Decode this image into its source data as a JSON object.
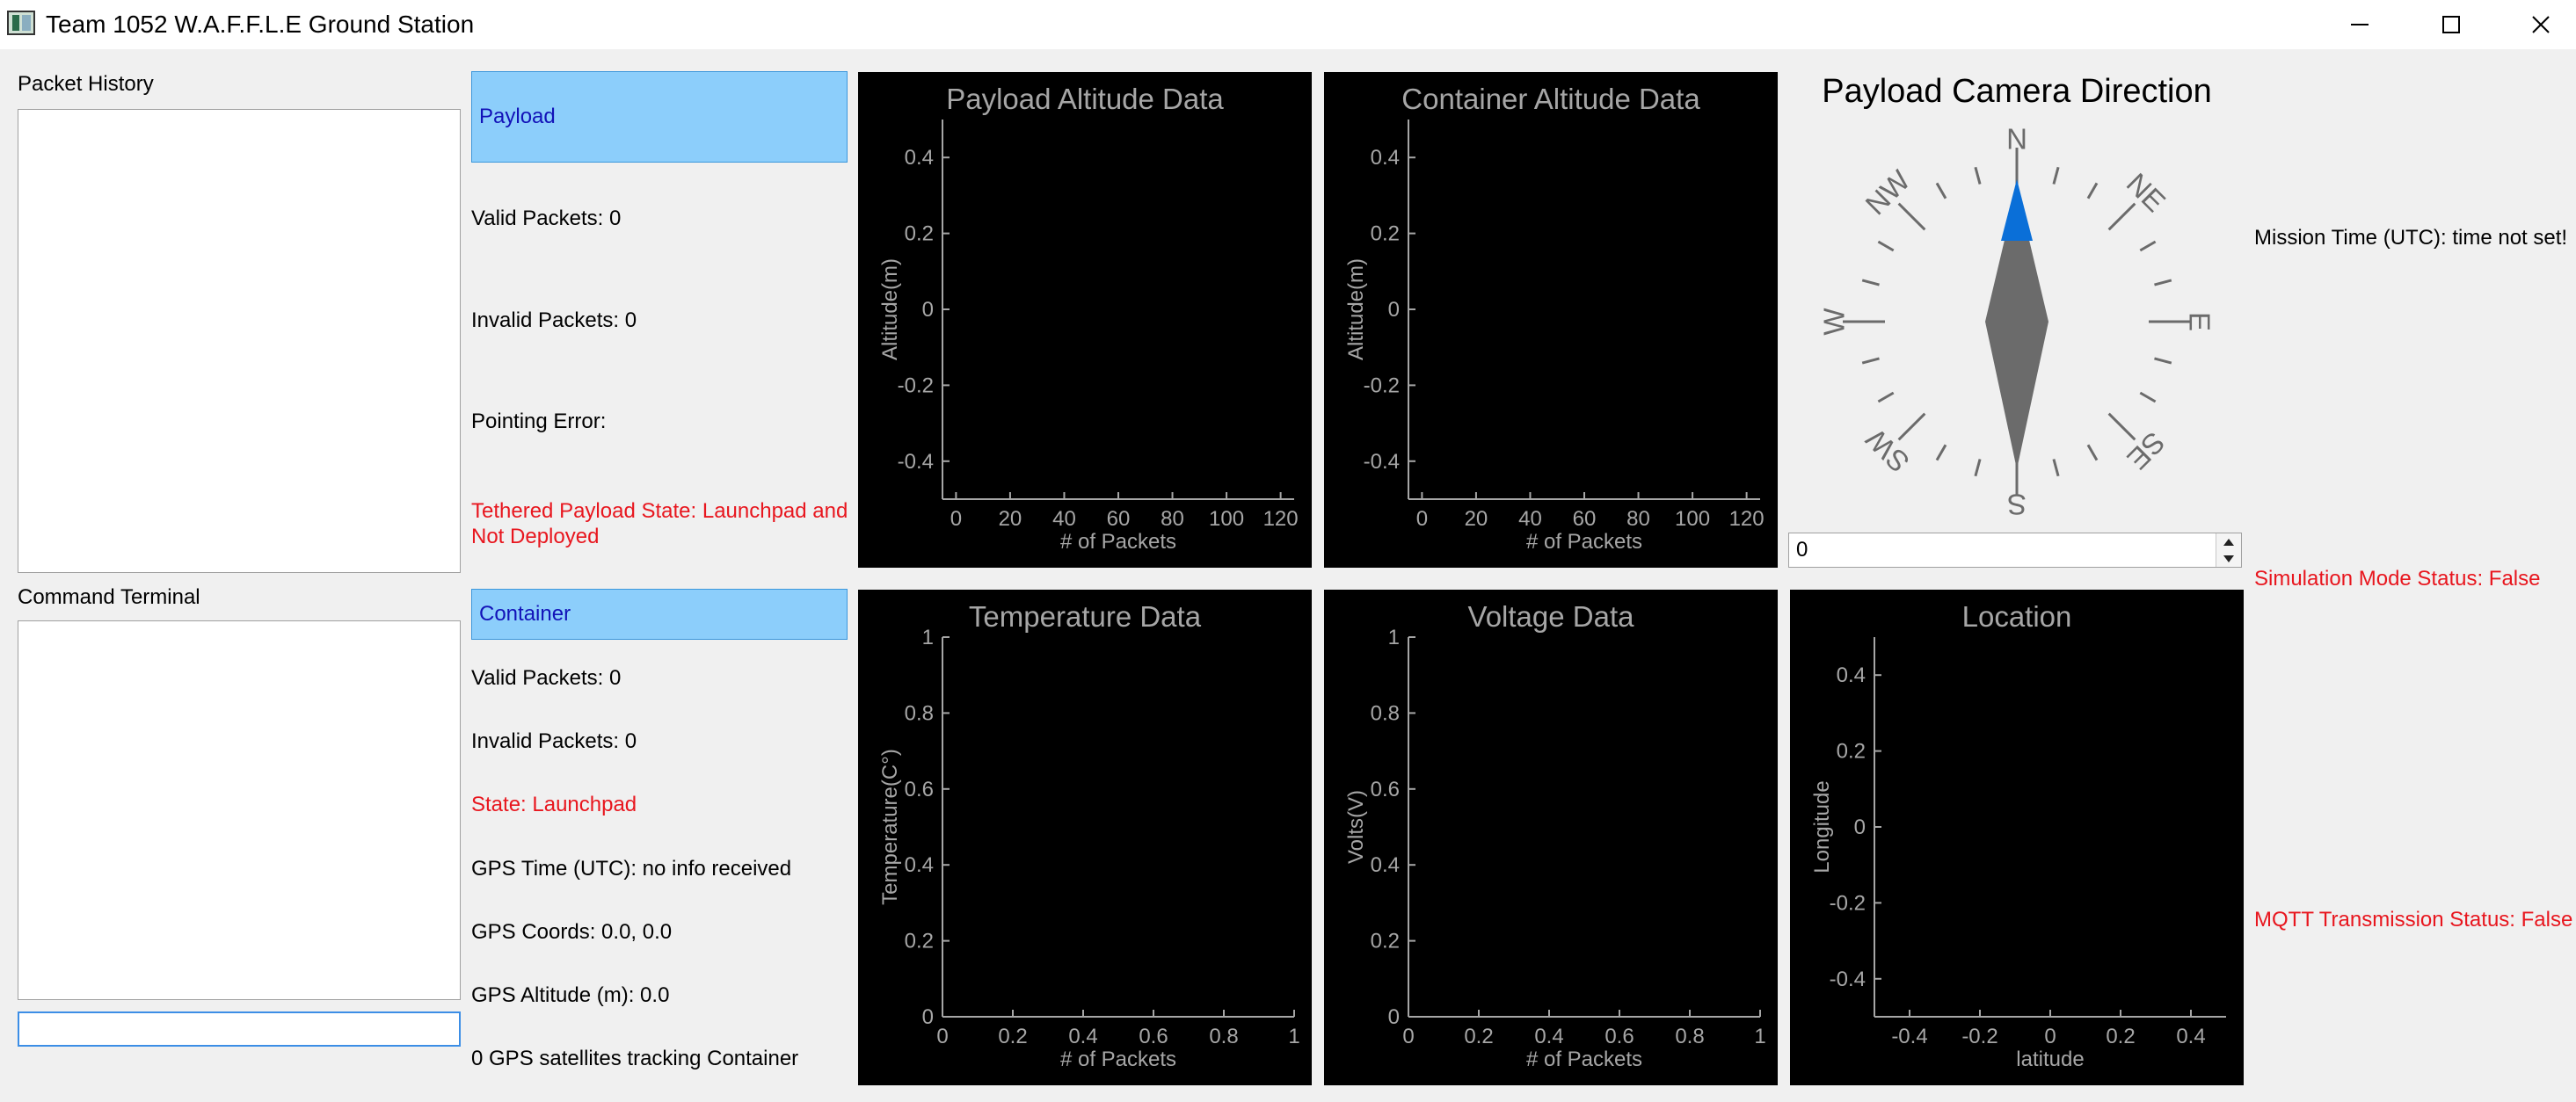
{
  "window": {
    "title": "Team 1052 W.A.F.F.L.E Ground Station",
    "icons": {
      "app": "app-icon",
      "minimize": "minimize-icon",
      "maximize": "maximize-icon",
      "close": "close-icon"
    }
  },
  "left": {
    "packet_history_label": "Packet History",
    "command_terminal_label": "Command Terminal",
    "command_input_value": ""
  },
  "payload": {
    "header": "Payload",
    "valid_packets": "Valid Packets: 0",
    "invalid_packets": "Invalid Packets: 0",
    "pointing_error": "Pointing Error:",
    "state_line1": "Tethered Payload State: Launchpad and",
    "state_line2": "Not Deployed"
  },
  "container": {
    "header": "Container",
    "valid_packets": "Valid Packets: 0",
    "invalid_packets": "Invalid Packets: 0",
    "state": "State: Launchpad",
    "gps_time": "GPS Time (UTC): no info received",
    "gps_coords": "GPS Coords: 0.0, 0.0",
    "gps_altitude": "GPS Altitude (m): 0.0",
    "gps_sats": "0 GPS satellites tracking Container"
  },
  "compass": {
    "title": "Payload Camera Direction",
    "labels": [
      "N",
      "NE",
      "E",
      "SE",
      "S",
      "SW",
      "W",
      "NW"
    ],
    "value": "0",
    "accent": "#0a6fd8",
    "needle": "#6b6b6b"
  },
  "status": {
    "mission_time": "Mission Time (UTC): time not set!",
    "simulation_mode": "Simulation Mode Status: False",
    "mqtt": "MQTT Transmission Status: False"
  },
  "colors": {
    "status_red": "#e8161e",
    "header_bg": "#8ccefb",
    "header_text": "#1212b8",
    "axis": "#a6a6a6"
  },
  "chart_data": [
    {
      "type": "line",
      "title": "Payload Altitude Data",
      "xlabel": "# of Packets",
      "ylabel": "Altitude(m)",
      "xlim": [
        -5,
        125
      ],
      "ylim": [
        -0.5,
        0.5
      ],
      "xticks": [
        0,
        20,
        40,
        60,
        80,
        100,
        120
      ],
      "xtick_labels": [
        "0",
        "20",
        "40",
        "60",
        "80",
        "100",
        "120"
      ],
      "yticks": [
        0.4,
        0.2,
        0,
        -0.2,
        -0.4
      ],
      "ytick_labels": [
        "0.4",
        "0.2",
        "0",
        "-0.2",
        "-0.4"
      ],
      "series": [],
      "grid": false
    },
    {
      "type": "line",
      "title": "Container Altitude Data",
      "xlabel": "# of Packets",
      "ylabel": "Altitude(m)",
      "xlim": [
        -5,
        125
      ],
      "ylim": [
        -0.5,
        0.5
      ],
      "xticks": [
        0,
        20,
        40,
        60,
        80,
        100,
        120
      ],
      "xtick_labels": [
        "0",
        "20",
        "40",
        "60",
        "80",
        "100",
        "120"
      ],
      "yticks": [
        0.4,
        0.2,
        0,
        -0.2,
        -0.4
      ],
      "ytick_labels": [
        "0.4",
        "0.2",
        "0",
        "-0.2",
        "-0.4"
      ],
      "series": [],
      "grid": false
    },
    {
      "type": "line",
      "title": "Temperature Data",
      "xlabel": "# of Packets",
      "ylabel": "Temperature(C°)",
      "xlim": [
        0,
        1
      ],
      "ylim": [
        0,
        1
      ],
      "xticks": [
        0,
        0.2,
        0.4,
        0.6,
        0.8,
        1
      ],
      "xtick_labels": [
        "0",
        "0.2",
        "0.4",
        "0.6",
        "0.8",
        "1"
      ],
      "yticks": [
        1,
        0.8,
        0.6,
        0.4,
        0.2,
        0
      ],
      "ytick_labels": [
        "1",
        "0.8",
        "0.6",
        "0.4",
        "0.2",
        "0"
      ],
      "series": [],
      "grid": false
    },
    {
      "type": "line",
      "title": "Voltage Data",
      "xlabel": "# of Packets",
      "ylabel": "Volts(V)",
      "xlim": [
        0,
        1
      ],
      "ylim": [
        0,
        1
      ],
      "xticks": [
        0,
        0.2,
        0.4,
        0.6,
        0.8,
        1
      ],
      "xtick_labels": [
        "0",
        "0.2",
        "0.4",
        "0.6",
        "0.8",
        "1"
      ],
      "yticks": [
        1,
        0.8,
        0.6,
        0.4,
        0.2,
        0
      ],
      "ytick_labels": [
        "1",
        "0.8",
        "0.6",
        "0.4",
        "0.2",
        "0"
      ],
      "series": [],
      "grid": false
    },
    {
      "type": "scatter",
      "title": "Location",
      "xlabel": "latitude",
      "ylabel": "Longitude",
      "xlim": [
        -0.5,
        0.5
      ],
      "ylim": [
        -0.5,
        0.5
      ],
      "xticks": [
        -0.4,
        -0.2,
        0,
        0.2,
        0.4
      ],
      "xtick_labels": [
        "-0.4",
        "-0.2",
        "0",
        "0.2",
        "0.4"
      ],
      "yticks": [
        0.4,
        0.2,
        0,
        -0.2,
        -0.4
      ],
      "ytick_labels": [
        "0.4",
        "0.2",
        "0",
        "-0.2",
        "-0.4"
      ],
      "series": [],
      "grid": false
    }
  ]
}
